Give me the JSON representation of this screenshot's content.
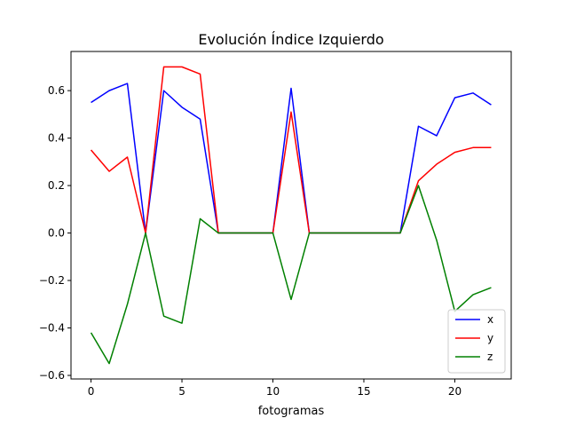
{
  "chart_data": {
    "type": "line",
    "title": "Evolución Índice Izquierdo",
    "xlabel": "fotogramas",
    "ylabel": "",
    "x": [
      0,
      1,
      2,
      3,
      4,
      5,
      6,
      7,
      8,
      9,
      10,
      11,
      12,
      13,
      14,
      15,
      16,
      17,
      18,
      19,
      20,
      21,
      22
    ],
    "xlim": [
      -1.1,
      23.1
    ],
    "ylim": [
      -0.615,
      0.765
    ],
    "xticks": [
      0,
      5,
      10,
      15,
      20
    ],
    "yticks": [
      -0.6,
      -0.4,
      -0.2,
      0.0,
      0.2,
      0.4,
      0.6
    ],
    "ytick_labels": [
      "−0.6",
      "−0.4",
      "−0.2",
      "0.0",
      "0.2",
      "0.4",
      "0.6"
    ],
    "grid": false,
    "legend_position": "lower-right",
    "series": [
      {
        "name": "x",
        "color": "#0000ff",
        "values": [
          0.55,
          0.6,
          0.63,
          0.0,
          0.6,
          0.53,
          0.48,
          0.0,
          0.0,
          0.0,
          0.0,
          0.61,
          0.0,
          0.0,
          0.0,
          0.0,
          0.0,
          0.0,
          0.45,
          0.41,
          0.57,
          0.59,
          0.54
        ]
      },
      {
        "name": "y",
        "color": "#ff0000",
        "values": [
          0.35,
          0.26,
          0.32,
          0.0,
          0.7,
          0.7,
          0.67,
          0.0,
          0.0,
          0.0,
          0.0,
          0.51,
          0.0,
          0.0,
          0.0,
          0.0,
          0.0,
          0.0,
          0.22,
          0.29,
          0.34,
          0.36,
          0.36
        ]
      },
      {
        "name": "z",
        "color": "#008000",
        "values": [
          -0.42,
          -0.55,
          -0.3,
          0.0,
          -0.35,
          -0.38,
          0.06,
          0.0,
          0.0,
          0.0,
          0.0,
          -0.28,
          0.0,
          0.0,
          0.0,
          0.0,
          0.0,
          0.0,
          0.2,
          -0.03,
          -0.33,
          -0.26,
          -0.23
        ]
      }
    ]
  }
}
